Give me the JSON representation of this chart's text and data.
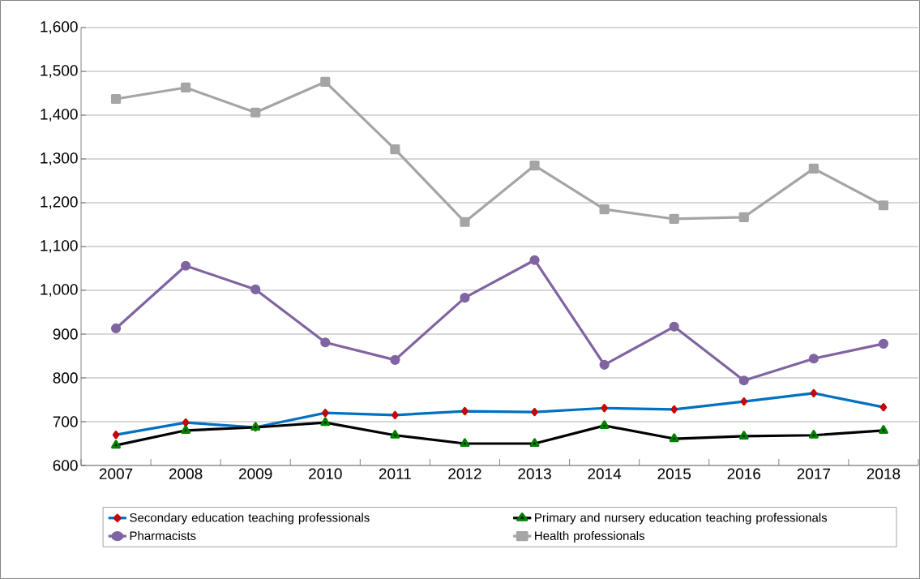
{
  "chart_data": {
    "type": "line",
    "categories": [
      "2007",
      "2008",
      "2009",
      "2010",
      "2011",
      "2012",
      "2013",
      "2014",
      "2015",
      "2016",
      "2017",
      "2018"
    ],
    "series": [
      {
        "name": "Secondary education teaching professionals",
        "color": "#0070c0",
        "marker": "diamond",
        "values": [
          670,
          698,
          687,
          720,
          715,
          724,
          722,
          731,
          728,
          746,
          765,
          733
        ]
      },
      {
        "name": "Primary and nursery education teaching professionals",
        "color": "#000000",
        "marker": "triangle",
        "values": [
          646,
          680,
          687,
          698,
          669,
          650,
          650,
          691,
          661,
          667,
          669,
          680
        ]
      },
      {
        "name": "Pharmacists",
        "color": "#8064a2",
        "marker": "circle",
        "values": [
          913,
          1056,
          1002,
          881,
          841,
          983,
          1069,
          830,
          917,
          794,
          844,
          878
        ]
      },
      {
        "name": "Health professionals",
        "color": "#a5a5a5",
        "marker": "square",
        "values": [
          1437,
          1463,
          1406,
          1476,
          1322,
          1156,
          1285,
          1185,
          1163,
          1167,
          1278,
          1194
        ]
      }
    ],
    "ylim": [
      600,
      1600
    ],
    "yticks": [
      {
        "value": 600,
        "label": "600"
      },
      {
        "value": 700,
        "label": "700"
      },
      {
        "value": 800,
        "label": "800"
      },
      {
        "value": 900,
        "label": "900"
      },
      {
        "value": 1000,
        "label": "1,000"
      },
      {
        "value": 1100,
        "label": "1,100"
      },
      {
        "value": 1200,
        "label": "1,200"
      },
      {
        "value": 1300,
        "label": "1,300"
      },
      {
        "value": 1400,
        "label": "1,400"
      },
      {
        "value": 1500,
        "label": "1,500"
      },
      {
        "value": 1600,
        "label": "1,600"
      }
    ],
    "grid": "y",
    "legend": "bottom",
    "line_style": "solid"
  }
}
